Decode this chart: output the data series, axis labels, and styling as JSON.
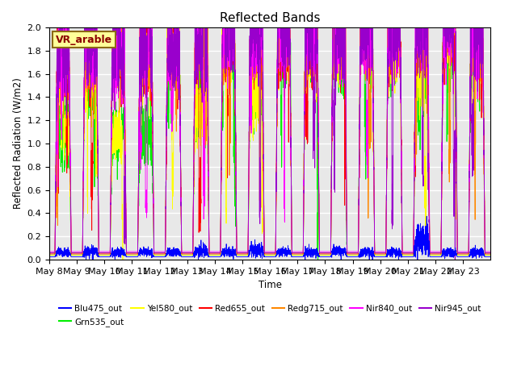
{
  "title": "Reflected Bands",
  "xlabel": "Time",
  "ylabel": "Reflected Radiation (W/m2)",
  "ylim": [
    0,
    2.0
  ],
  "annotation_text": "VR_arable",
  "annotation_box_color": "#FFFF99",
  "annotation_border_color": "#8B6914",
  "n_days": 16,
  "points_per_day": 288,
  "series": [
    {
      "name": "Blu475_out",
      "color": "#0000FF"
    },
    {
      "name": "Grn535_out",
      "color": "#00EE00"
    },
    {
      "name": "Yel580_out",
      "color": "#FFFF00"
    },
    {
      "name": "Red655_out",
      "color": "#FF0000"
    },
    {
      "name": "Redg715_out",
      "color": "#FF8800"
    },
    {
      "name": "Nir840_out",
      "color": "#FF00FF"
    },
    {
      "name": "Nir945_out",
      "color": "#9900CC"
    }
  ],
  "figsize": [
    6.4,
    4.8
  ],
  "dpi": 100,
  "bg_color": "#E8E8E8",
  "grid_color": "white",
  "tick_dates": [
    "May 8",
    "May 9",
    "May 10",
    "May 11",
    "May 12",
    "May 13",
    "May 14",
    "May 15",
    "May 16",
    "May 17",
    "May 18",
    "May 19",
    "May 20",
    "May 21",
    "May 22",
    "May 23"
  ]
}
